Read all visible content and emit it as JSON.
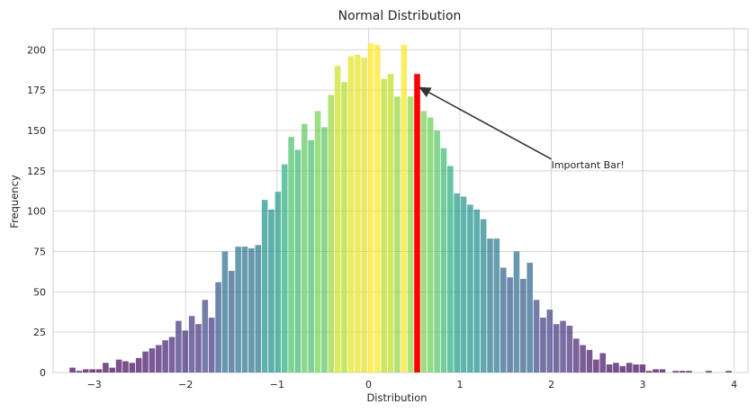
{
  "chart_data": {
    "type": "bar",
    "title": "Normal Distribution",
    "xlabel": "Distribution",
    "ylabel": "Frequency",
    "xlim": [
      -3.45,
      4.15
    ],
    "ylim": [
      0,
      213
    ],
    "bin_start": -3.27,
    "bin_width": 0.0725,
    "x_ticks": [
      -3,
      -2,
      -1,
      0,
      1,
      2,
      3,
      4
    ],
    "x_tick_labels": [
      "−3",
      "−2",
      "−1",
      "0",
      "1",
      "2",
      "3",
      "4"
    ],
    "y_ticks": [
      0,
      25,
      50,
      75,
      100,
      125,
      150,
      175,
      200
    ],
    "y_tick_labels": [
      "0",
      "25",
      "50",
      "75",
      "100",
      "125",
      "150",
      "175",
      "200"
    ],
    "grid": true,
    "colormap": "viridis",
    "values": [
      3,
      1,
      2,
      2,
      2,
      6,
      3,
      8,
      7,
      6,
      9,
      13,
      15,
      17,
      20,
      22,
      32,
      26,
      35,
      30,
      45,
      34,
      56,
      75,
      63,
      78,
      78,
      77,
      79,
      107,
      101,
      112,
      129,
      146,
      138,
      154,
      144,
      162,
      152,
      172,
      190,
      180,
      196,
      197,
      195,
      204,
      203,
      182,
      185,
      171,
      203,
      171,
      185,
      162,
      158,
      150,
      139,
      128,
      111,
      109,
      104,
      101,
      95,
      83,
      83,
      65,
      59,
      75,
      58,
      68,
      45,
      34,
      39,
      30,
      32,
      29,
      21,
      17,
      14,
      8,
      12,
      5,
      6,
      4,
      6,
      5,
      5,
      1,
      2,
      2,
      0,
      1,
      1,
      1,
      0,
      0,
      1,
      0,
      0,
      1
    ],
    "highlight": {
      "bin_index": 52,
      "color": "#ff0000"
    },
    "annotation": {
      "text": "Important Bar!",
      "text_x": 2.0,
      "text_y": 130,
      "point_x": 0.55,
      "point_y": 177
    }
  }
}
